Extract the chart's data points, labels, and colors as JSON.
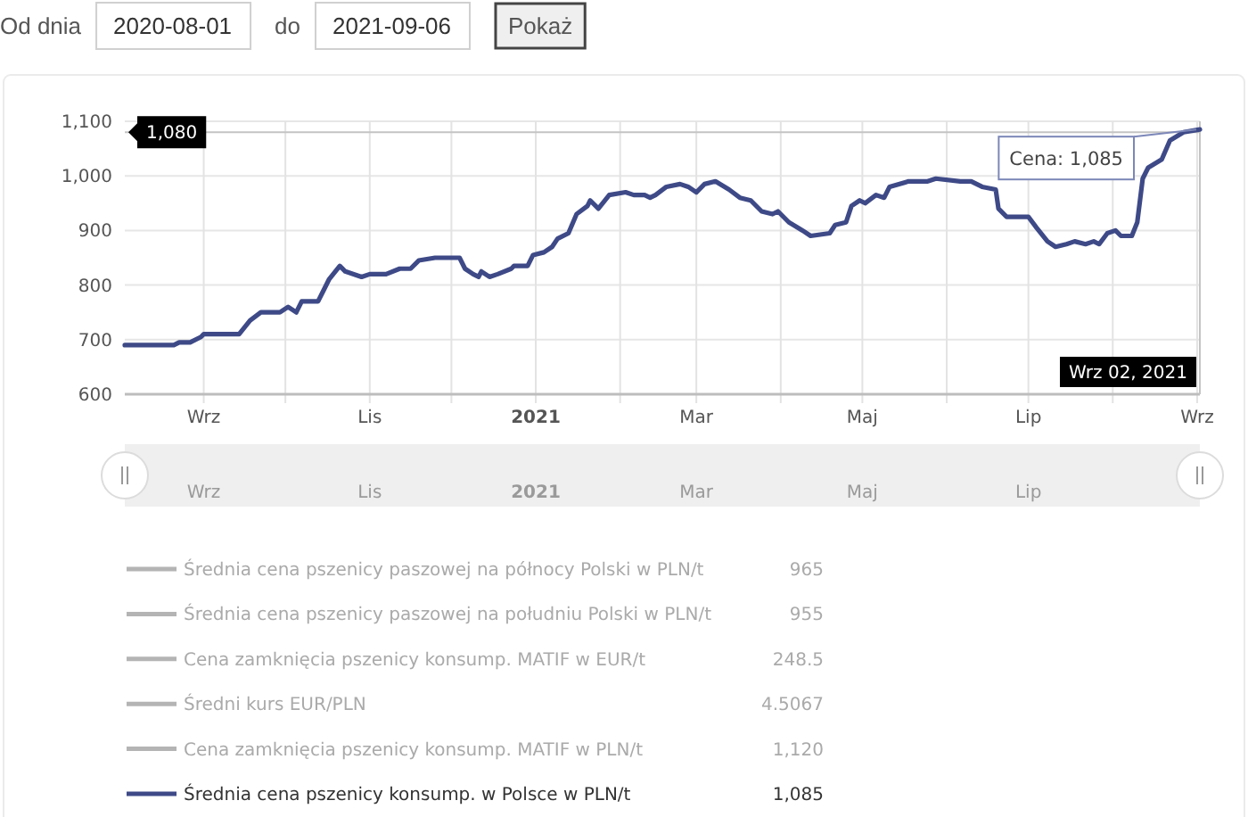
{
  "chart_data": [
    {
      "type": "other",
      "annotations": [
        "Od dnia",
        "2020-08-01",
        "do",
        "2021-09-06",
        "Pokaż"
      ]
    },
    {
      "type": "line",
      "series": [
        {
          "name": "Średnia cena pszenicy paszowej na północy Polski w PLN/t",
          "color": "#b4b4b4"
        },
        {
          "name": "Średnia cena pszenicy paszowej na południu Polski w PLN/t",
          "color": "#b4b4b4"
        },
        {
          "name": "Cena zamknięcia pszenicy konsump. MATIF w EUR/t",
          "color": "#b4b4b4"
        },
        {
          "name": "Średni kurs EUR/PLN",
          "color": "#b4b4b4"
        },
        {
          "name": "Cena zamknięcia pszenicy konsump. MATIF w PLN/t",
          "color": "#b4b4b4"
        },
        {
          "name": "Średnia cena pszenicy konsump. w Polsce w PLN/t",
          "color": "#3e4a87",
          "x": [
            "2020-08-03",
            "2020-08-21",
            "2020-08-23",
            "2020-08-27",
            "2020-08-31",
            "2020-09-01",
            "2020-09-14",
            "2020-09-18",
            "2020-09-22",
            "2020-09-29",
            "2020-10-02",
            "2020-10-05",
            "2020-10-07",
            "2020-10-13",
            "2020-10-15",
            "2020-10-17",
            "2020-10-21",
            "2020-10-23",
            "2020-10-29",
            "2020-11-01",
            "2020-11-07",
            "2020-11-12",
            "2020-11-16",
            "2020-11-19",
            "2020-11-25",
            "2020-11-27",
            "2020-12-04",
            "2020-12-06",
            "2020-12-09",
            "2020-12-11",
            "2020-12-12",
            "2020-12-15",
            "2020-12-18",
            "2020-12-23",
            "2020-12-24",
            "2020-12-29",
            "2020-12-31",
            "2021-01-04",
            "2021-01-07",
            "2021-01-09",
            "2021-01-13",
            "2021-01-16",
            "2021-01-20",
            "2021-01-21",
            "2021-01-24",
            "2021-01-28",
            "2021-02-03",
            "2021-02-06",
            "2021-02-10",
            "2021-02-12",
            "2021-02-14",
            "2021-02-18",
            "2021-02-23",
            "2021-02-26",
            "2021-03-01",
            "2021-03-04",
            "2021-03-08",
            "2021-03-13",
            "2021-03-17",
            "2021-03-21",
            "2021-03-25",
            "2021-03-29",
            "2021-03-31",
            "2021-04-04",
            "2021-04-09",
            "2021-04-12",
            "2021-04-19",
            "2021-04-21",
            "2021-04-25",
            "2021-04-27",
            "2021-04-30",
            "2021-05-02",
            "2021-05-06",
            "2021-05-09",
            "2021-05-11",
            "2021-05-18",
            "2021-05-25",
            "2021-05-28",
            "2021-06-06",
            "2021-06-10",
            "2021-06-14",
            "2021-06-19",
            "2021-06-20",
            "2021-06-23",
            "2021-07-01",
            "2021-07-04",
            "2021-07-08",
            "2021-07-11",
            "2021-07-15",
            "2021-07-18",
            "2021-07-22",
            "2021-07-25",
            "2021-07-27",
            "2021-07-30",
            "2021-08-02",
            "2021-08-04",
            "2021-08-08",
            "2021-08-10",
            "2021-08-12",
            "2021-08-14",
            "2021-08-19",
            "2021-08-22",
            "2021-08-27",
            "2021-09-02"
          ],
          "values": [
            690,
            690,
            695,
            695,
            705,
            710,
            710,
            735,
            750,
            750,
            760,
            750,
            770,
            770,
            790,
            810,
            835,
            825,
            815,
            820,
            820,
            830,
            830,
            845,
            850,
            850,
            850,
            830,
            820,
            815,
            825,
            815,
            820,
            830,
            835,
            835,
            855,
            860,
            870,
            885,
            895,
            930,
            945,
            955,
            940,
            965,
            970,
            965,
            965,
            960,
            965,
            980,
            985,
            980,
            970,
            985,
            990,
            975,
            960,
            955,
            935,
            930,
            935,
            915,
            900,
            890,
            895,
            910,
            915,
            945,
            955,
            950,
            965,
            960,
            980,
            990,
            990,
            995,
            990,
            990,
            980,
            975,
            940,
            925,
            925,
            905,
            880,
            870,
            875,
            880,
            875,
            880,
            875,
            895,
            900,
            890,
            890,
            915,
            995,
            1015,
            1030,
            1065,
            1080,
            1085
          ]
        }
      ],
      "xlim": [
        "2020-08-03",
        "2021-09-02"
      ],
      "xticks": [
        {
          "value": "2020-09-01",
          "label": "Wrz"
        },
        {
          "value": "2020-10-01",
          "label": null
        },
        {
          "value": "2020-11-01",
          "label": "Lis"
        },
        {
          "value": "2020-12-01",
          "label": null
        },
        {
          "value": "2021-01-01",
          "label": "2021"
        },
        {
          "value": "2021-02-01",
          "label": null
        },
        {
          "value": "2021-03-01",
          "label": "Mar"
        },
        {
          "value": "2021-04-01",
          "label": null
        },
        {
          "value": "2021-05-01",
          "label": "Maj"
        },
        {
          "value": "2021-06-01",
          "label": null
        },
        {
          "value": "2021-07-01",
          "label": "Lip"
        },
        {
          "value": "2021-08-01",
          "label": null
        },
        {
          "value": "2021-09-01",
          "label": "Wrz"
        }
      ],
      "ylim": [
        600,
        1100
      ],
      "yticks": [
        600,
        700,
        800,
        900,
        {
          "value": 1000,
          "label": "1,000"
        },
        {
          "value": 1100,
          "label": "1,100"
        }
      ],
      "grid": true,
      "legend": "bottom",
      "ref_lines": [
        {
          "axis": "y",
          "value": 1080,
          "label": "1,080"
        },
        {
          "axis": "x",
          "value": "2021-09-02",
          "label": "Wrz 02, 2021"
        }
      ],
      "annotations": [
        {
          "text": "Cena: 1,085",
          "x": "2021-09-02",
          "y": 1085
        },
        "965",
        "955",
        "248.5",
        "4.5067",
        "1,120",
        "1,085"
      ]
    }
  ]
}
